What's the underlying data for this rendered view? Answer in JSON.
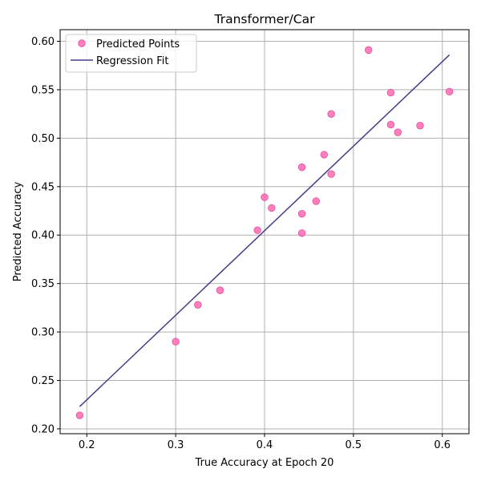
{
  "chart_data": {
    "type": "scatter",
    "title": "Transformer/Car",
    "xlabel": "True Accuracy at Epoch 20",
    "ylabel": "Predicted Accuracy",
    "xlim": [
      0.17,
      0.63
    ],
    "ylim": [
      0.195,
      0.612
    ],
    "xticks": [
      0.2,
      0.3,
      0.4,
      0.5,
      0.6
    ],
    "xtick_labels": [
      "0.2",
      "0.3",
      "0.4",
      "0.5",
      "0.6"
    ],
    "yticks": [
      0.2,
      0.25,
      0.3,
      0.35,
      0.4,
      0.45,
      0.5,
      0.55,
      0.6
    ],
    "ytick_labels": [
      "0.20",
      "0.25",
      "0.30",
      "0.35",
      "0.40",
      "0.45",
      "0.50",
      "0.55",
      "0.60"
    ],
    "grid": true,
    "legend_position": "top-left",
    "series": [
      {
        "name": "Predicted Points",
        "kind": "scatter",
        "color": "#ff69b4",
        "edge_color": "#e04f9a",
        "points": [
          {
            "x": 0.192,
            "y": 0.214
          },
          {
            "x": 0.3,
            "y": 0.29
          },
          {
            "x": 0.325,
            "y": 0.328
          },
          {
            "x": 0.35,
            "y": 0.343
          },
          {
            "x": 0.392,
            "y": 0.405
          },
          {
            "x": 0.4,
            "y": 0.439
          },
          {
            "x": 0.408,
            "y": 0.428
          },
          {
            "x": 0.442,
            "y": 0.402
          },
          {
            "x": 0.442,
            "y": 0.422
          },
          {
            "x": 0.442,
            "y": 0.47
          },
          {
            "x": 0.458,
            "y": 0.435
          },
          {
            "x": 0.467,
            "y": 0.483
          },
          {
            "x": 0.475,
            "y": 0.463
          },
          {
            "x": 0.475,
            "y": 0.525
          },
          {
            "x": 0.517,
            "y": 0.591
          },
          {
            "x": 0.542,
            "y": 0.514
          },
          {
            "x": 0.542,
            "y": 0.547
          },
          {
            "x": 0.55,
            "y": 0.506
          },
          {
            "x": 0.575,
            "y": 0.513
          },
          {
            "x": 0.608,
            "y": 0.548
          }
        ]
      },
      {
        "name": "Regression Fit",
        "kind": "line",
        "color": "#483d8b",
        "points": [
          {
            "x": 0.192,
            "y": 0.223
          },
          {
            "x": 0.608,
            "y": 0.586
          }
        ]
      }
    ]
  }
}
